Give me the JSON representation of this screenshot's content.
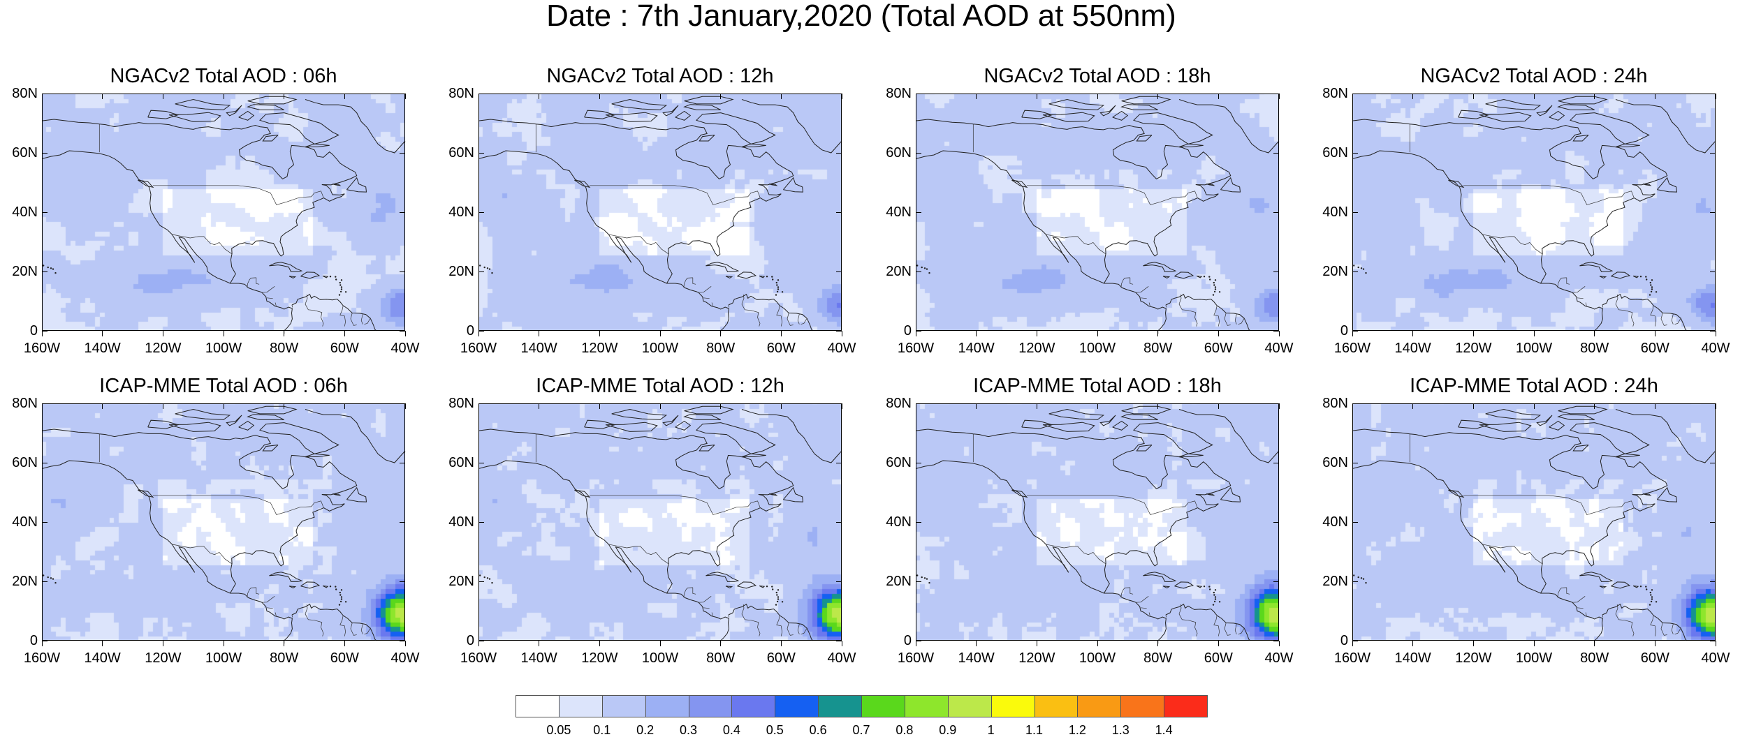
{
  "title": "Date : 7th January,2020 (Total AOD at 550nm)",
  "panels": [
    {
      "title": "NGACv2 Total AOD : 06h",
      "model": "ngac",
      "hour": 6
    },
    {
      "title": "NGACv2 Total AOD : 12h",
      "model": "ngac",
      "hour": 12
    },
    {
      "title": "NGACv2 Total AOD : 18h",
      "model": "ngac",
      "hour": 18
    },
    {
      "title": "NGACv2 Total AOD : 24h",
      "model": "ngac",
      "hour": 24
    },
    {
      "title": "ICAP-MME Total AOD : 06h",
      "model": "icap",
      "hour": 6
    },
    {
      "title": "ICAP-MME Total AOD : 12h",
      "model": "icap",
      "hour": 12
    },
    {
      "title": "ICAP-MME Total AOD : 18h",
      "model": "icap",
      "hour": 18
    },
    {
      "title": "ICAP-MME Total AOD : 24h",
      "model": "icap",
      "hour": 24
    }
  ],
  "map": {
    "lon_range": [
      -160,
      -40
    ],
    "lat_range": [
      0,
      80
    ],
    "lon_ticks": [
      {
        "value": -160,
        "label": "160W"
      },
      {
        "value": -140,
        "label": "140W"
      },
      {
        "value": -120,
        "label": "120W"
      },
      {
        "value": -100,
        "label": "100W"
      },
      {
        "value": -80,
        "label": "80W"
      },
      {
        "value": -60,
        "label": "60W"
      },
      {
        "value": -40,
        "label": "40W"
      }
    ],
    "lat_ticks": [
      {
        "value": 0,
        "label": "0"
      },
      {
        "value": 20,
        "label": "20N"
      },
      {
        "value": 40,
        "label": "40N"
      },
      {
        "value": 60,
        "label": "60N"
      },
      {
        "value": 80,
        "label": "80N"
      }
    ]
  },
  "colorbar": {
    "levels": [
      "0.05",
      "0.1",
      "0.2",
      "0.3",
      "0.4",
      "0.5",
      "0.6",
      "0.7",
      "0.8",
      "0.9",
      "1",
      "1.1",
      "1.2",
      "1.3",
      "1.4"
    ],
    "colors": [
      "#ffffff",
      "#dce4fb",
      "#bac8f6",
      "#9cb0f4",
      "#8495f0",
      "#6a78ef",
      "#1560f2",
      "#16938f",
      "#5ad81c",
      "#8ee62c",
      "#bce84a",
      "#fafa0c",
      "#fabf12",
      "#f99a14",
      "#f9741a",
      "#fb2c1a"
    ]
  }
}
